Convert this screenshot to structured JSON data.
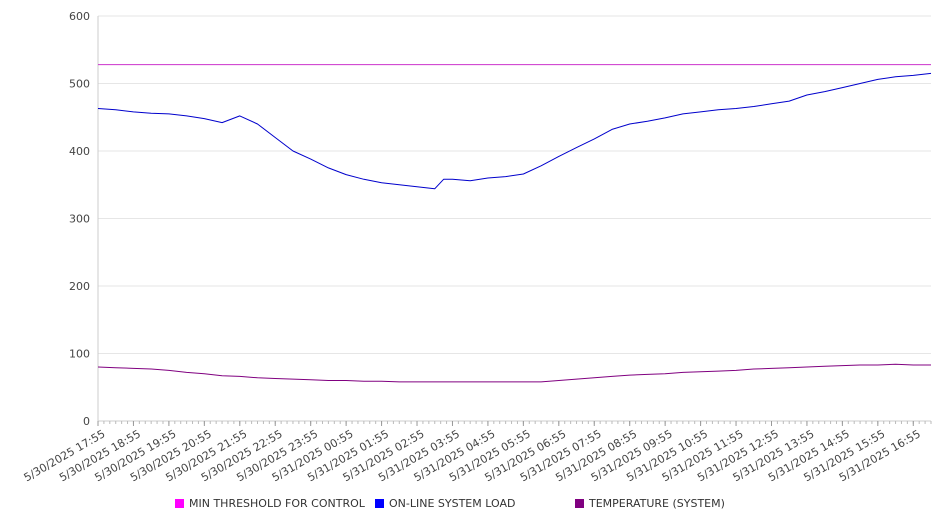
{
  "chart_data": {
    "type": "line",
    "ylim": [
      0,
      600
    ],
    "yticks": [
      0,
      100,
      200,
      300,
      400,
      500,
      600
    ],
    "x_tick_labels": [
      "5/30/2025 17:55",
      "5/30/2025 18:55",
      "5/30/2025 19:55",
      "5/30/2025 20:55",
      "5/30/2025 21:55",
      "5/30/2025 22:55",
      "5/30/2025 23:55",
      "5/31/2025 00:55",
      "5/31/2025 01:55",
      "5/31/2025 02:55",
      "5/31/2025 03:55",
      "5/31/2025 04:55",
      "5/31/2025 05:55",
      "5/31/2025 06:55",
      "5/31/2025 07:55",
      "5/31/2025 08:55",
      "5/31/2025 09:55",
      "5/31/2025 10:55",
      "5/31/2025 11:55",
      "5/31/2025 12:55",
      "5/31/2025 13:55",
      "5/31/2025 14:55",
      "5/31/2025 15:55",
      "5/31/2025 16:55"
    ],
    "x": [
      "5/30/2025 17:55",
      "5/30/2025 18:25",
      "5/30/2025 18:55",
      "5/30/2025 19:25",
      "5/30/2025 19:55",
      "5/30/2025 20:25",
      "5/30/2025 20:55",
      "5/30/2025 21:25",
      "5/30/2025 21:55",
      "5/30/2025 22:25",
      "5/30/2025 22:55",
      "5/30/2025 23:25",
      "5/30/2025 23:55",
      "5/31/2025 00:25",
      "5/31/2025 00:55",
      "5/31/2025 01:25",
      "5/31/2025 01:55",
      "5/31/2025 02:25",
      "5/31/2025 02:55",
      "5/31/2025 03:25",
      "5/31/2025 03:40",
      "5/31/2025 03:55",
      "5/31/2025 04:25",
      "5/31/2025 04:55",
      "5/31/2025 05:25",
      "5/31/2025 05:55",
      "5/31/2025 06:25",
      "5/31/2025 06:55",
      "5/31/2025 07:25",
      "5/31/2025 07:55",
      "5/31/2025 08:25",
      "5/31/2025 08:55",
      "5/31/2025 09:25",
      "5/31/2025 09:55",
      "5/31/2025 10:25",
      "5/31/2025 10:55",
      "5/31/2025 11:25",
      "5/31/2025 11:55",
      "5/31/2025 12:25",
      "5/31/2025 12:55",
      "5/31/2025 13:25",
      "5/31/2025 13:55",
      "5/31/2025 14:25",
      "5/31/2025 14:55",
      "5/31/2025 15:25",
      "5/31/2025 15:55",
      "5/31/2025 16:25",
      "5/31/2025 16:55",
      "5/31/2025 17:25"
    ],
    "series": [
      {
        "name": "MIN THRESHOLD FOR CONTROL",
        "color": "#cc33cc",
        "values": [
          528,
          528,
          528,
          528,
          528,
          528,
          528,
          528,
          528,
          528,
          528,
          528,
          528,
          528,
          528,
          528,
          528,
          528,
          528,
          528,
          528,
          528,
          528,
          528,
          528,
          528,
          528,
          528,
          528,
          528,
          528,
          528,
          528,
          528,
          528,
          528,
          528,
          528,
          528,
          528,
          528,
          528,
          528,
          528,
          528,
          528,
          528,
          528,
          528
        ]
      },
      {
        "name": "ON-LINE SYSTEM LOAD",
        "color": "#0000cc",
        "values": [
          463,
          461,
          458,
          456,
          455,
          452,
          448,
          442,
          452,
          440,
          420,
          400,
          388,
          375,
          365,
          358,
          353,
          350,
          347,
          344,
          358,
          358,
          356,
          360,
          362,
          366,
          378,
          392,
          405,
          418,
          432,
          440,
          444,
          449,
          455,
          458,
          461,
          463,
          466,
          470,
          474,
          483,
          488,
          494,
          500,
          506,
          510,
          512,
          515
        ]
      },
      {
        "name": "TEMPERATURE (SYSTEM)",
        "color": "#800080",
        "values": [
          80,
          79,
          78,
          77,
          75,
          72,
          70,
          67,
          66,
          64,
          63,
          62,
          61,
          60,
          60,
          59,
          59,
          58,
          58,
          58,
          58,
          58,
          58,
          58,
          58,
          58,
          58,
          60,
          62,
          64,
          66,
          68,
          69,
          70,
          72,
          73,
          74,
          75,
          77,
          78,
          79,
          80,
          81,
          82,
          83,
          83,
          84,
          83,
          83
        ]
      }
    ]
  },
  "legend": {
    "items": [
      {
        "label": "MIN THRESHOLD FOR CONTROL",
        "color": "#ff00ff"
      },
      {
        "label": "ON-LINE SYSTEM LOAD",
        "color": "#0000ff"
      },
      {
        "label": "TEMPERATURE (SYSTEM)",
        "color": "#800080"
      }
    ]
  }
}
